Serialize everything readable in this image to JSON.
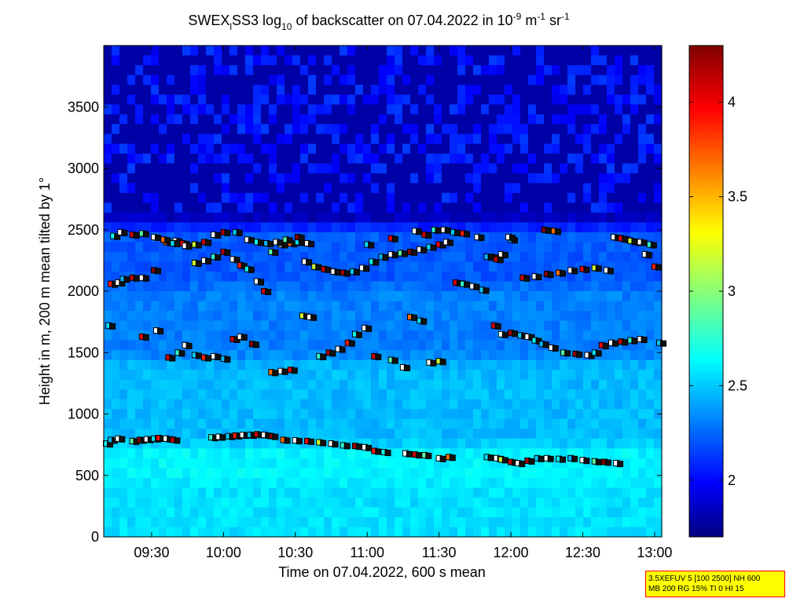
{
  "chart_data": {
    "type": "heatmap",
    "title": {
      "p1": "SWEX",
      "p1_sub": "l",
      "p2": "SS3 log",
      "p2_sub": "10",
      "p3": " of backscatter on 07.04.2022 in 10",
      "p3_sup": "-9",
      "p4": " m",
      "p4_sup": "-1",
      "p5": " sr",
      "p5_sup": "-1"
    },
    "xlabel": "Time on 07.04.2022, 600 s mean",
    "ylabel": "Height in m, 200 m mean tilted by 1°",
    "x_ticks": [
      "09:30",
      "10:00",
      "10:30",
      "11:00",
      "11:30",
      "12:00",
      "12:30",
      "13:00"
    ],
    "x_tick_values": [
      570,
      600,
      630,
      660,
      690,
      720,
      750,
      780
    ],
    "xlim": [
      550,
      783
    ],
    "y_ticks": [
      "0",
      "500",
      "1000",
      "1500",
      "2000",
      "2500",
      "3000",
      "3500"
    ],
    "y_tick_values": [
      0,
      500,
      1000,
      1500,
      2000,
      2500,
      3000,
      3500
    ],
    "ylim": [
      0,
      4000
    ],
    "colorbar": {
      "colormap": "jet",
      "range": [
        1.7,
        4.3
      ],
      "tick_labels": [
        "2",
        "2.5",
        "3",
        "3.5",
        "4"
      ],
      "tick_values": [
        2,
        2.5,
        3,
        3.5,
        4
      ]
    },
    "background_bands": [
      {
        "h0": 0,
        "h1": 500,
        "value": 2.6
      },
      {
        "h0": 500,
        "h1": 800,
        "value": 2.65
      },
      {
        "h0": 800,
        "h1": 1500,
        "value": 2.5
      },
      {
        "h0": 1500,
        "h1": 2100,
        "value": 2.35
      },
      {
        "h0": 2100,
        "h1": 2600,
        "value": 2.25
      },
      {
        "h0": 2600,
        "h1": 4000,
        "value": 1.85
      }
    ],
    "cloud_layers": [
      {
        "name": "layer-1",
        "points": [
          [
            551,
            760
          ],
          [
            553,
            790
          ],
          [
            556,
            800
          ],
          [
            562,
            780
          ],
          [
            565,
            790
          ],
          [
            568,
            795
          ],
          [
            571,
            800
          ],
          [
            573,
            805
          ],
          [
            576,
            800
          ],
          [
            579,
            790
          ],
          [
            595,
            810
          ],
          [
            598,
            815
          ],
          [
            602,
            820
          ],
          [
            605,
            825
          ],
          [
            608,
            830
          ],
          [
            611,
            830
          ],
          [
            614,
            835
          ],
          [
            617,
            830
          ],
          [
            620,
            820
          ],
          [
            625,
            790
          ],
          [
            630,
            785
          ],
          [
            635,
            780
          ],
          [
            640,
            770
          ],
          [
            645,
            760
          ],
          [
            650,
            745
          ],
          [
            655,
            740
          ],
          [
            659,
            730
          ],
          [
            663,
            700
          ],
          [
            667,
            690
          ],
          [
            676,
            680
          ],
          [
            680,
            670
          ],
          [
            684,
            665
          ],
          [
            690,
            640
          ],
          [
            694,
            650
          ],
          [
            710,
            650
          ],
          [
            714,
            640
          ],
          [
            716,
            630
          ],
          [
            720,
            610
          ],
          [
            723,
            600
          ],
          [
            727,
            620
          ],
          [
            731,
            640
          ],
          [
            735,
            640
          ],
          [
            740,
            635
          ],
          [
            745,
            640
          ],
          [
            750,
            625
          ],
          [
            755,
            615
          ],
          [
            759,
            610
          ],
          [
            764,
            600
          ]
        ]
      },
      {
        "name": "layer-2",
        "points": [
          [
            552,
            1720
          ],
          [
            566,
            1630
          ],
          [
            572,
            1680
          ],
          [
            577,
            1460
          ],
          [
            581,
            1500
          ],
          [
            584,
            1560
          ],
          [
            588,
            1480
          ],
          [
            592,
            1460
          ],
          [
            596,
            1470
          ],
          [
            600,
            1450
          ],
          [
            604,
            1610
          ],
          [
            607,
            1630
          ],
          [
            612,
            1570
          ],
          [
            620,
            1340
          ],
          [
            624,
            1350
          ],
          [
            628,
            1360
          ],
          [
            633,
            1800
          ],
          [
            636,
            1790
          ],
          [
            640,
            1470
          ],
          [
            644,
            1500
          ],
          [
            648,
            1530
          ],
          [
            652,
            1580
          ],
          [
            655,
            1650
          ],
          [
            659,
            1700
          ],
          [
            663,
            1470
          ],
          [
            670,
            1440
          ],
          [
            675,
            1380
          ],
          [
            678,
            1790
          ],
          [
            682,
            1760
          ],
          [
            686,
            1420
          ],
          [
            690,
            1430
          ],
          [
            713,
            1720
          ],
          [
            716,
            1650
          ],
          [
            720,
            1660
          ],
          [
            724,
            1640
          ],
          [
            727,
            1630
          ],
          [
            730,
            1600
          ],
          [
            733,
            1570
          ],
          [
            737,
            1540
          ],
          [
            742,
            1500
          ],
          [
            747,
            1490
          ],
          [
            752,
            1480
          ],
          [
            755,
            1500
          ],
          [
            758,
            1560
          ],
          [
            762,
            1580
          ],
          [
            766,
            1590
          ],
          [
            770,
            1600
          ],
          [
            774,
            1610
          ],
          [
            782,
            1580
          ]
        ]
      },
      {
        "name": "layer-3",
        "points": [
          [
            553,
            2060
          ],
          [
            556,
            2070
          ],
          [
            558,
            2100
          ],
          [
            562,
            2110
          ],
          [
            566,
            2110
          ],
          [
            571,
            2170
          ],
          [
            576,
            2400
          ],
          [
            580,
            2410
          ],
          [
            583,
            2390
          ],
          [
            588,
            2230
          ],
          [
            592,
            2250
          ],
          [
            596,
            2280
          ],
          [
            600,
            2320
          ],
          [
            604,
            2260
          ],
          [
            607,
            2210
          ],
          [
            610,
            2180
          ],
          [
            614,
            2080
          ],
          [
            617,
            2000
          ],
          [
            620,
            2320
          ],
          [
            624,
            2380
          ],
          [
            628,
            2390
          ],
          [
            631,
            2400
          ],
          [
            634,
            2240
          ],
          [
            638,
            2200
          ],
          [
            642,
            2180
          ],
          [
            646,
            2160
          ],
          [
            650,
            2150
          ],
          [
            654,
            2160
          ],
          [
            658,
            2190
          ],
          [
            662,
            2240
          ],
          [
            666,
            2280
          ],
          [
            670,
            2300
          ],
          [
            674,
            2310
          ],
          [
            678,
            2320
          ],
          [
            682,
            2340
          ],
          [
            686,
            2360
          ],
          [
            690,
            2380
          ],
          [
            693,
            2400
          ],
          [
            697,
            2070
          ],
          [
            700,
            2060
          ],
          [
            704,
            2040
          ],
          [
            708,
            2010
          ],
          [
            712,
            2280
          ],
          [
            716,
            2300
          ],
          [
            720,
            2420
          ],
          [
            725,
            2110
          ],
          [
            730,
            2120
          ],
          [
            735,
            2140
          ],
          [
            740,
            2150
          ],
          [
            745,
            2170
          ],
          [
            750,
            2180
          ],
          [
            755,
            2190
          ],
          [
            760,
            2170
          ],
          [
            768,
            2420
          ],
          [
            772,
            2400
          ],
          [
            776,
            2300
          ],
          [
            780,
            2200
          ]
        ]
      },
      {
        "name": "layer-4",
        "points": [
          [
            554,
            2450
          ],
          [
            557,
            2480
          ],
          [
            562,
            2460
          ],
          [
            566,
            2470
          ],
          [
            571,
            2440
          ],
          [
            575,
            2420
          ],
          [
            579,
            2390
          ],
          [
            584,
            2370
          ],
          [
            588,
            2380
          ],
          [
            592,
            2400
          ],
          [
            596,
            2460
          ],
          [
            600,
            2480
          ],
          [
            605,
            2480
          ],
          [
            610,
            2420
          ],
          [
            614,
            2400
          ],
          [
            618,
            2390
          ],
          [
            622,
            2400
          ],
          [
            626,
            2420
          ],
          [
            631,
            2440
          ],
          [
            635,
            2390
          ],
          [
            660,
            2380
          ],
          [
            670,
            2430
          ],
          [
            680,
            2490
          ],
          [
            684,
            2460
          ],
          [
            688,
            2500
          ],
          [
            692,
            2500
          ],
          [
            696,
            2480
          ],
          [
            700,
            2470
          ],
          [
            706,
            2440
          ],
          [
            710,
            2280
          ],
          [
            714,
            2260
          ],
          [
            719,
            2440
          ],
          [
            734,
            2500
          ],
          [
            738,
            2490
          ],
          [
            763,
            2440
          ],
          [
            766,
            2430
          ],
          [
            770,
            2410
          ],
          [
            774,
            2400
          ],
          [
            778,
            2380
          ]
        ]
      }
    ],
    "marker_values": [
      2.7,
      2.5,
      4.1,
      2.9,
      4.3,
      3.7,
      2.6,
      4.0,
      3.2,
      4.1,
      2.8,
      4.2,
      2.55,
      3.9
    ]
  },
  "legend_box": {
    "line1": "3.5XEFUV 5 [100 2500] NH 600",
    "line2": "MB 200 RG 15% TI 0 HI 15"
  }
}
